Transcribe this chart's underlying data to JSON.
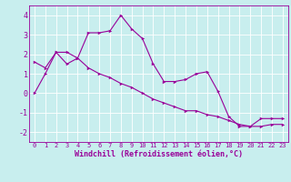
{
  "xlabel": "Windchill (Refroidissement éolien,°C)",
  "background_color": "#c8eeee",
  "grid_color": "#ffffff",
  "line_color": "#990099",
  "xlim": [
    -0.5,
    23.5
  ],
  "ylim": [
    -2.5,
    4.5
  ],
  "yticks": [
    -2,
    -1,
    0,
    1,
    2,
    3,
    4
  ],
  "xticks": [
    0,
    1,
    2,
    3,
    4,
    5,
    6,
    7,
    8,
    9,
    10,
    11,
    12,
    13,
    14,
    15,
    16,
    17,
    18,
    19,
    20,
    21,
    22,
    23
  ],
  "series1_x": [
    0,
    1,
    2,
    3,
    4,
    5,
    6,
    7,
    8,
    9,
    10,
    11,
    12,
    13,
    14,
    15,
    16,
    17,
    18,
    19,
    20,
    21,
    22,
    23
  ],
  "series1_y": [
    0.0,
    1.0,
    2.1,
    2.1,
    1.8,
    3.1,
    3.1,
    3.2,
    4.0,
    3.3,
    2.8,
    1.5,
    0.6,
    0.6,
    0.7,
    1.0,
    1.1,
    0.1,
    -1.2,
    -1.7,
    -1.7,
    -1.3,
    -1.3,
    -1.3
  ],
  "series2_x": [
    0,
    1,
    2,
    3,
    4,
    5,
    6,
    7,
    8,
    9,
    10,
    11,
    12,
    13,
    14,
    15,
    16,
    17,
    18,
    19,
    20,
    21,
    22,
    23
  ],
  "series2_y": [
    1.6,
    1.3,
    2.1,
    1.5,
    1.8,
    1.3,
    1.0,
    0.8,
    0.5,
    0.3,
    0.0,
    -0.3,
    -0.5,
    -0.7,
    -0.9,
    -0.9,
    -1.1,
    -1.2,
    -1.4,
    -1.6,
    -1.7,
    -1.7,
    -1.6,
    -1.6
  ],
  "tick_fontsize": 5,
  "xlabel_fontsize": 6,
  "marker_size": 2.5,
  "linewidth": 0.8
}
